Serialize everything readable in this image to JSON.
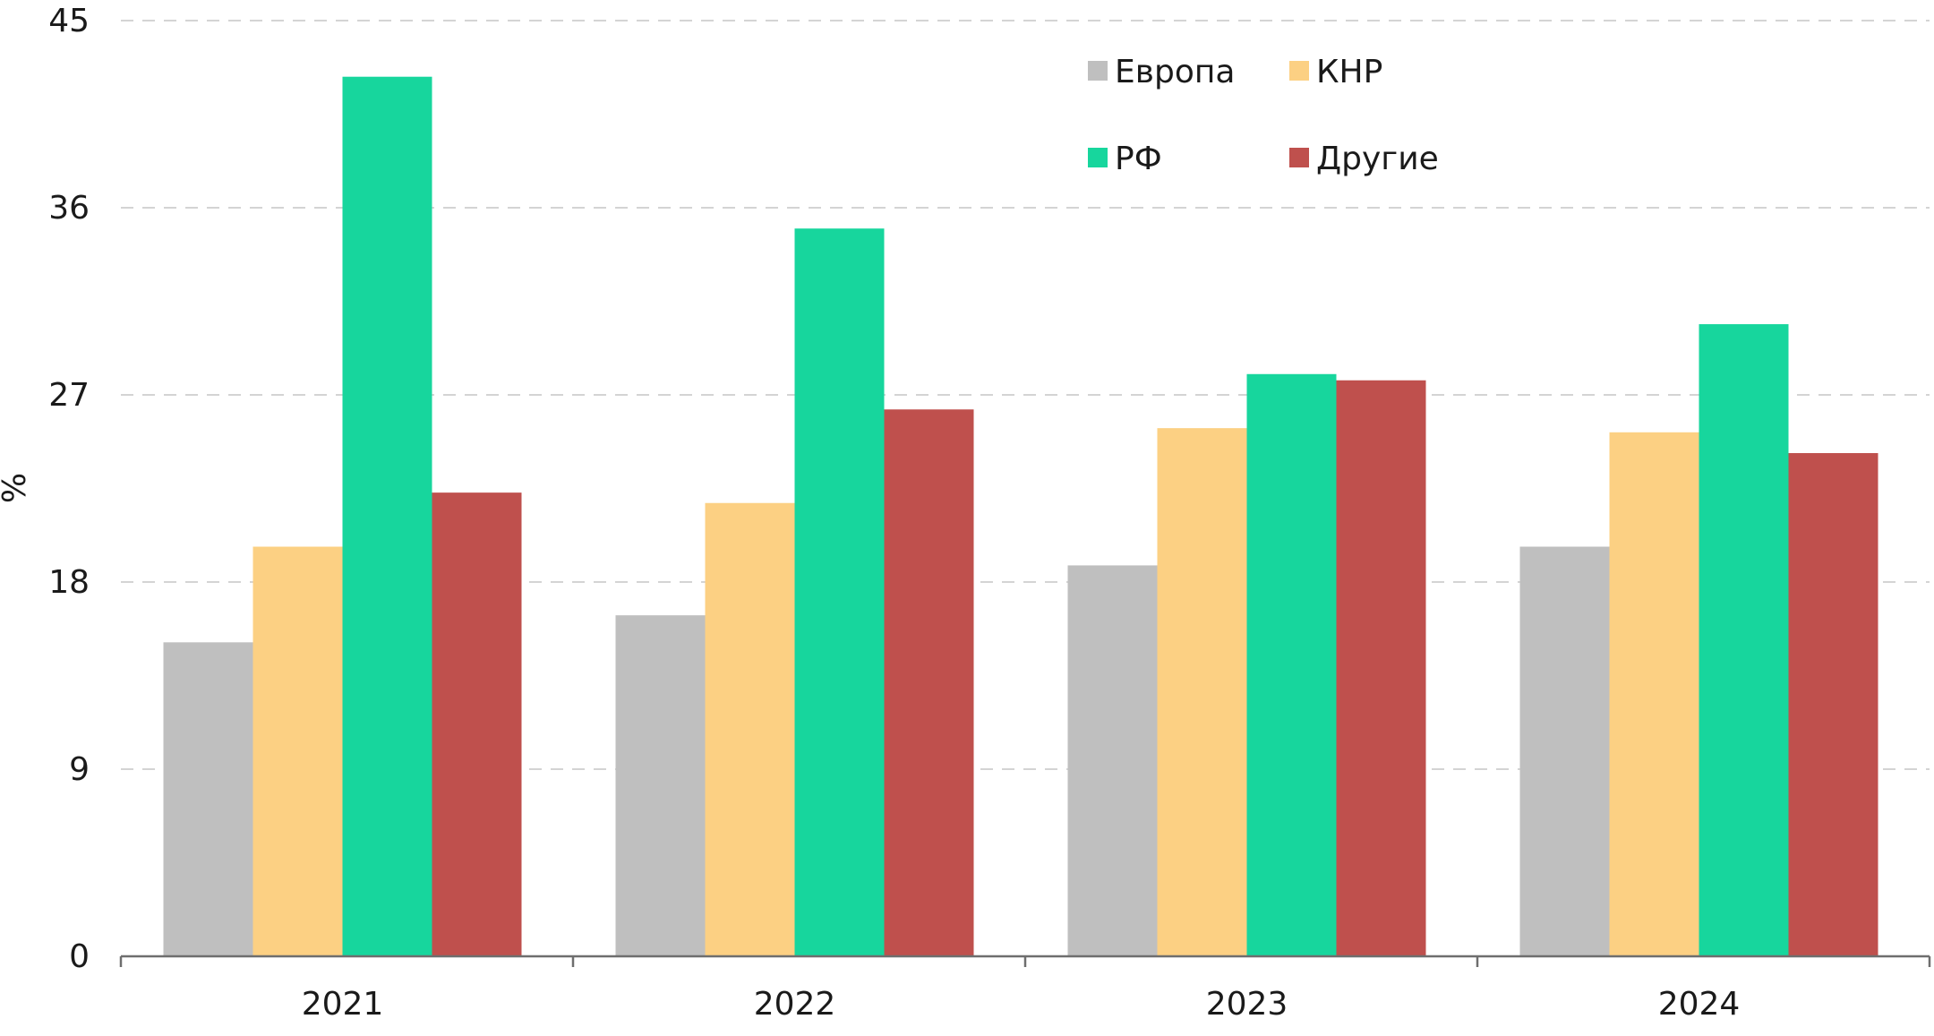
{
  "chart_data": {
    "type": "bar",
    "categories": [
      "2021",
      "2022",
      "2023",
      "2024"
    ],
    "series": [
      {
        "name": "Европа",
        "color": "#bfbfbf",
        "values": [
          15.1,
          16.4,
          18.8,
          19.7
        ]
      },
      {
        "name": "КНР",
        "color": "#fcd083",
        "values": [
          19.7,
          21.8,
          25.4,
          25.2
        ]
      },
      {
        "name": "РФ",
        "color": "#17d69d",
        "values": [
          42.3,
          35.0,
          28.0,
          30.4
        ]
      },
      {
        "name": "Другие",
        "color": "#bf504d",
        "values": [
          22.3,
          26.3,
          27.7,
          24.2
        ]
      }
    ],
    "ylabel": "%",
    "xlabel": "",
    "ylim": [
      0,
      45
    ],
    "yticks": [
      "0",
      "9",
      "18",
      "27",
      "36",
      "45"
    ],
    "grid": true,
    "legend_position": "top-right"
  }
}
